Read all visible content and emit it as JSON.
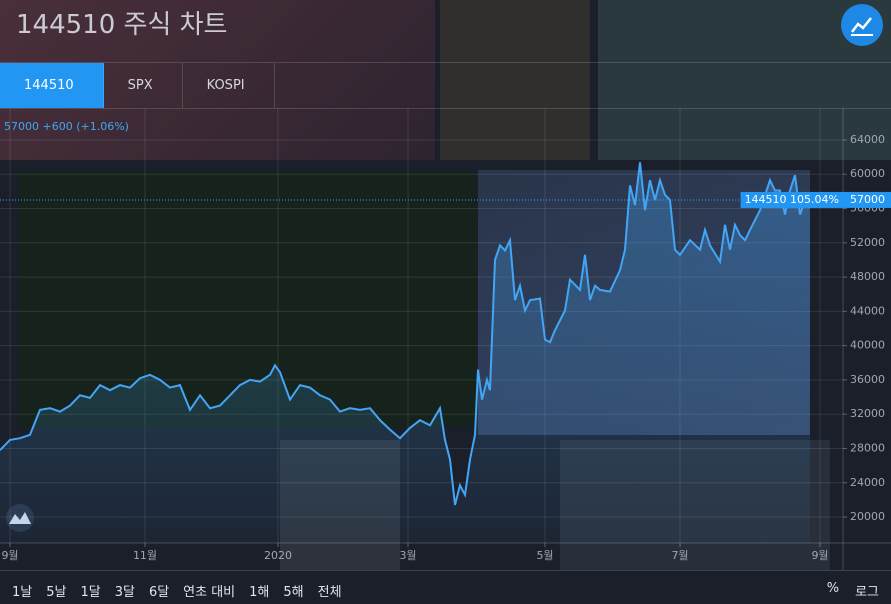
{
  "header": {
    "title": "144510 주식 차트"
  },
  "tabs": [
    "144510",
    "SPX",
    "KOSPI"
  ],
  "active_tab": 0,
  "chart_data": {
    "type": "line",
    "legend_text": "57000 +600 (+1.06%)",
    "series": [
      {
        "color": "#42a5f5",
        "x": [
          0,
          10,
          20,
          30,
          40,
          50,
          60,
          70,
          80,
          90,
          100,
          110,
          120,
          130,
          140,
          150,
          160,
          170,
          180,
          190,
          200,
          210,
          220,
          230,
          240,
          250,
          260,
          270,
          275,
          280,
          290,
          300,
          310,
          320,
          330,
          340,
          350,
          360,
          370,
          380,
          390,
          400,
          410,
          420,
          430,
          440,
          445,
          450,
          455,
          460,
          465,
          470,
          475,
          478,
          482,
          487,
          490,
          495,
          500,
          505,
          510,
          515,
          520,
          525,
          530,
          540,
          545,
          550,
          555,
          565,
          570,
          580,
          585,
          590,
          595,
          600,
          610,
          620,
          625,
          630,
          635,
          640,
          645,
          650,
          655,
          660,
          665,
          670,
          675,
          680,
          690,
          700,
          705,
          710,
          720,
          725,
          730,
          735,
          740,
          745,
          750,
          760,
          770,
          775,
          780,
          785,
          790,
          795,
          800,
          805,
          810
        ],
        "values": [
          27800,
          29000,
          29200,
          29600,
          32500,
          32700,
          32300,
          33000,
          34200,
          33900,
          35400,
          34800,
          35400,
          35100,
          36200,
          36600,
          36000,
          35100,
          35400,
          32500,
          34200,
          32700,
          33000,
          34200,
          35400,
          36000,
          35800,
          36600,
          37700,
          36900,
          33700,
          35400,
          35100,
          34200,
          33700,
          32300,
          32700,
          32500,
          32700,
          31300,
          30200,
          29200,
          30400,
          31300,
          30700,
          32700,
          29000,
          26700,
          21400,
          23700,
          22600,
          26700,
          29600,
          37200,
          33700,
          36000,
          34800,
          50000,
          51700,
          51100,
          52300,
          45300,
          47000,
          44100,
          45300,
          45500,
          40700,
          40400,
          41800,
          44100,
          47700,
          46500,
          50600,
          45300,
          47000,
          46500,
          46300,
          48800,
          51200,
          58700,
          56400,
          61400,
          55800,
          59300,
          57000,
          59300,
          57600,
          57000,
          51200,
          50600,
          52300,
          51200,
          53500,
          51700,
          49800,
          54100,
          51200,
          54100,
          52900,
          52300,
          53500,
          55800,
          59300,
          58100,
          58100,
          55300,
          58100,
          59900,
          55300,
          57000,
          57000
        ]
      }
    ],
    "xlim": [
      0,
      843
    ],
    "xticks": [
      {
        "value": 10,
        "label": "9월"
      },
      {
        "value": 145,
        "label": "11월"
      },
      {
        "value": 278,
        "label": "2020"
      },
      {
        "value": 408,
        "label": "3월"
      },
      {
        "value": 545,
        "label": "5월"
      },
      {
        "value": 680,
        "label": "7월"
      },
      {
        "value": 820,
        "label": "9월"
      }
    ],
    "ylim": [
      16970,
      67730
    ],
    "yticks": [
      20000,
      24000,
      28000,
      32000,
      36000,
      40000,
      44000,
      48000,
      52000,
      56000,
      60000,
      64000
    ],
    "grid": true,
    "price_tag": {
      "label": "144510 105.04%",
      "value": 57000
    }
  },
  "range_buttons": [
    "1날",
    "5날",
    "1달",
    "3달",
    "6달",
    "연초 대비",
    "1해",
    "5해",
    "전체"
  ],
  "scale_buttons": [
    "%",
    "로그"
  ]
}
